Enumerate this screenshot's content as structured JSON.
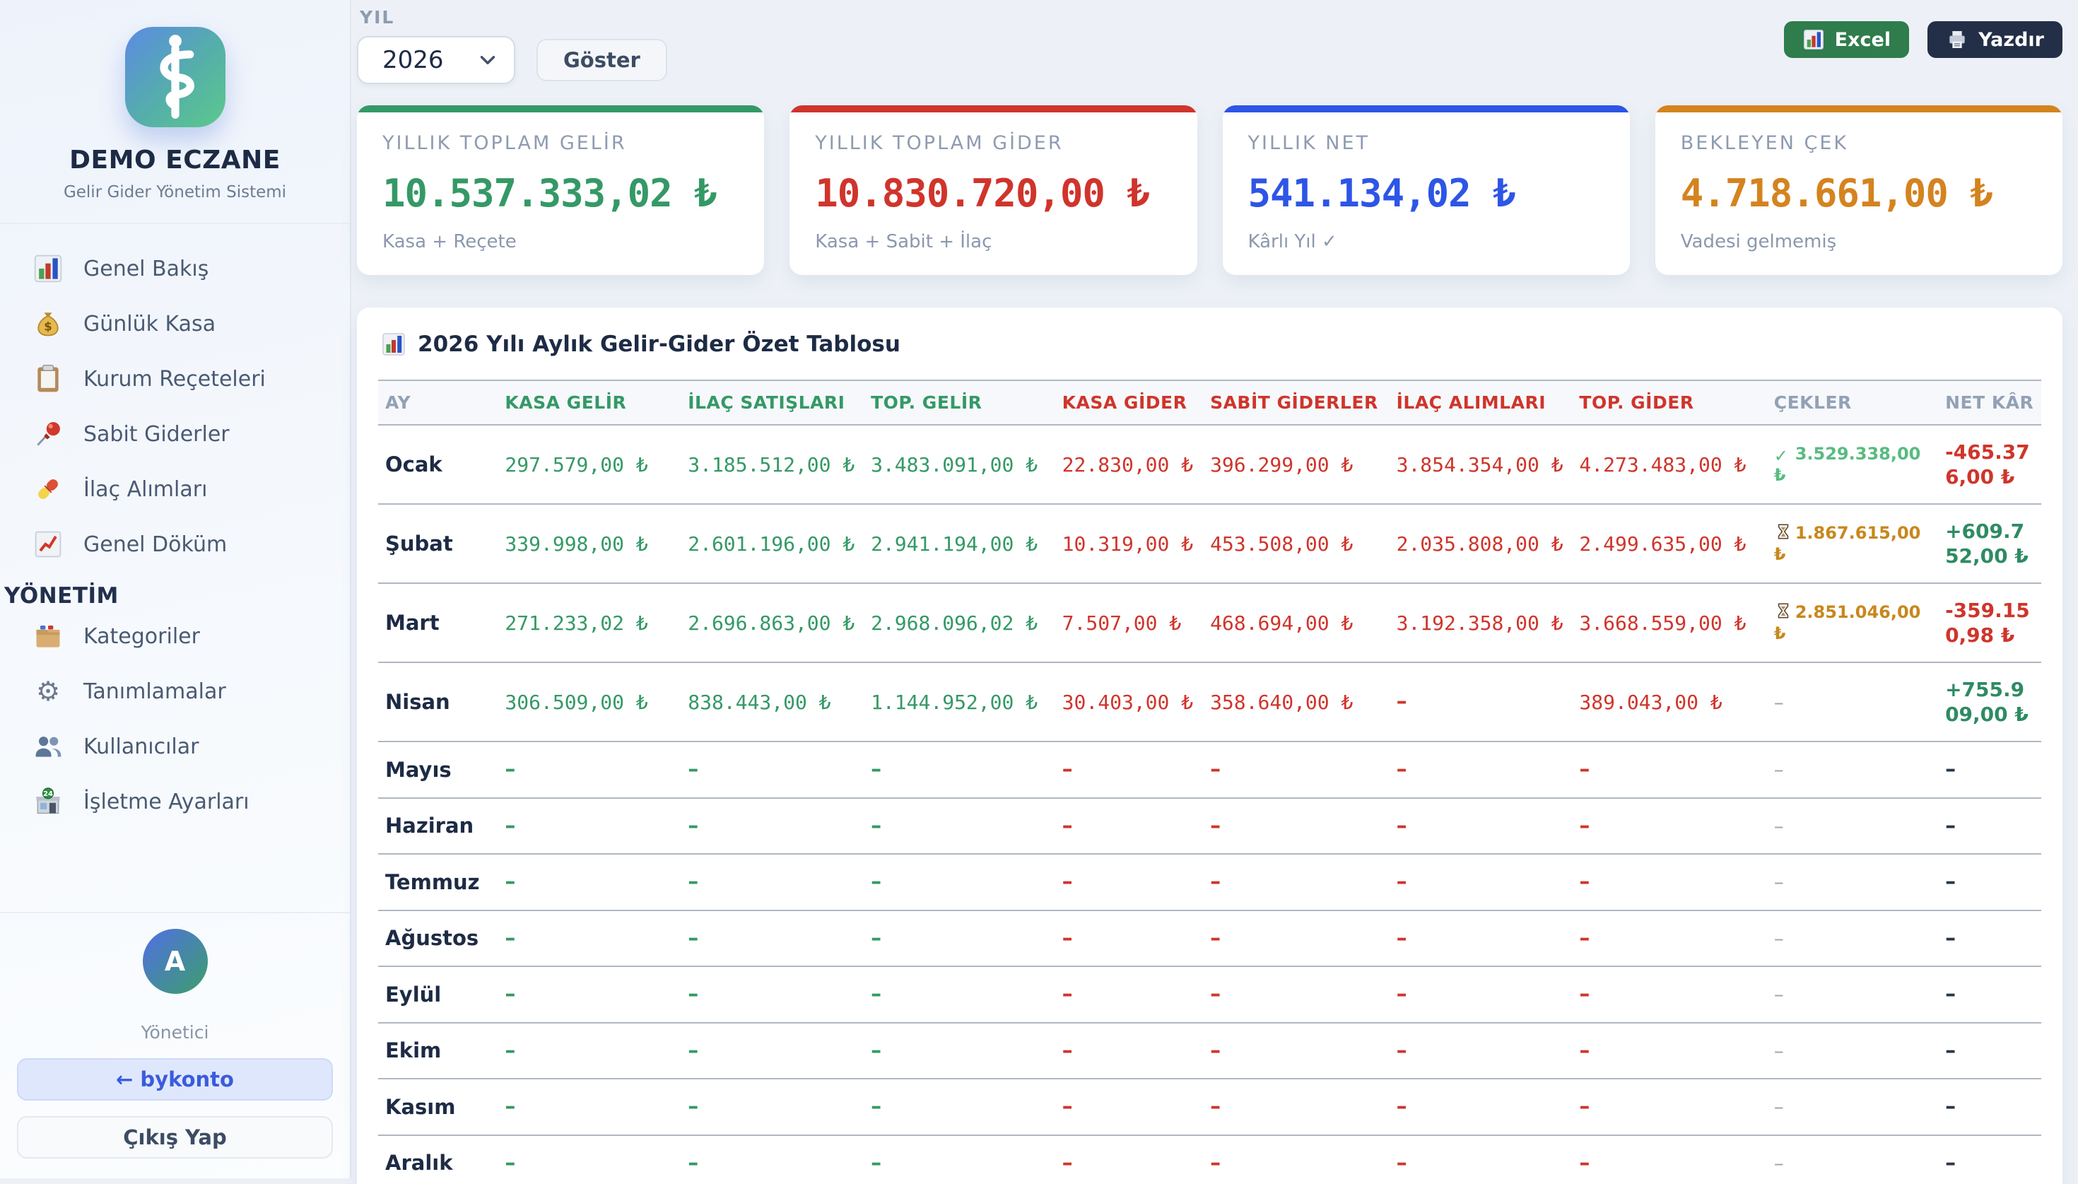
{
  "app": {
    "title": "DEMO ECZANE",
    "subtitle": "Gelir Gider Yönetim Sistemi"
  },
  "sidebar": {
    "menu": [
      {
        "icon": "bar-chart-icon",
        "label": "Genel Bakış"
      },
      {
        "icon": "money-bag-icon",
        "label": "Günlük Kasa"
      },
      {
        "icon": "clipboard-icon",
        "label": "Kurum Reçeteleri"
      },
      {
        "icon": "pushpin-icon",
        "label": "Sabit Giderler"
      },
      {
        "icon": "pill-icon",
        "label": "İlaç Alımları"
      },
      {
        "icon": "chart-up-icon",
        "label": "Genel Döküm"
      }
    ],
    "section_label": "YÖNETİM",
    "admin_menu": [
      {
        "icon": "folder-icon",
        "label": "Kategoriler"
      },
      {
        "icon": "gear-icon",
        "label": "Tanımlamalar"
      },
      {
        "icon": "users-icon",
        "label": "Kullanıcılar"
      },
      {
        "icon": "store-icon",
        "label": "İşletme Ayarları"
      }
    ],
    "user": {
      "avatar_letter": "A",
      "role": "Yönetici",
      "back_button": "← bykonto",
      "logout_button": "Çıkış Yap"
    }
  },
  "toolbar": {
    "year_label": "YIL",
    "year_value": "2026",
    "show_button": "Göster",
    "excel_button": "Excel",
    "print_button": "Yazdır"
  },
  "summary_cards": [
    {
      "label": "YILLIK TOPLAM GELİR",
      "value": "10.537.333,02 ₺",
      "subtitle": "Kasa + Reçete",
      "accent": "#349966"
    },
    {
      "label": "YILLIK TOPLAM GİDER",
      "value": "10.830.720,00 ₺",
      "subtitle": "Kasa + Sabit + İlaç",
      "accent": "#d0342c"
    },
    {
      "label": "YILLIK NET",
      "value": "541.134,02 ₺",
      "subtitle": "Kârlı Yıl ✓",
      "accent": "#2d55e6"
    },
    {
      "label": "BEKLEYEN ÇEK",
      "value": "4.718.661,00 ₺",
      "subtitle": "Vadesi gelmemiş",
      "accent": "#d4831f"
    }
  ],
  "table": {
    "title": "2026 Yılı Aylık Gelir-Gider Özet Tablosu",
    "columns": [
      {
        "label": "AY",
        "tone": "muted"
      },
      {
        "label": "KASA GELİR",
        "tone": "income"
      },
      {
        "label": "İLAÇ SATIŞLARI",
        "tone": "income"
      },
      {
        "label": "TOP. GELİR",
        "tone": "income"
      },
      {
        "label": "KASA GİDER",
        "tone": "expense"
      },
      {
        "label": "SABİT GİDERLER",
        "tone": "expense"
      },
      {
        "label": "İLAÇ ALIMLARI",
        "tone": "expense"
      },
      {
        "label": "TOP. GİDER",
        "tone": "expense"
      },
      {
        "label": "ÇEKLER",
        "tone": "muted"
      },
      {
        "label": "NET KÂR",
        "tone": "muted"
      }
    ],
    "rows": [
      {
        "month": "Ocak",
        "values": [
          "297.579,00 ₺",
          "3.185.512,00 ₺",
          "3.483.091,00 ₺",
          "22.830,00 ₺",
          "396.299,00 ₺",
          "3.854.354,00 ₺",
          "4.273.483,00 ₺"
        ],
        "cek": {
          "icon": "check-icon",
          "text": "3.529.338,00 ₺",
          "tone": "paid"
        },
        "net": {
          "text": "-465.376,00 ₺",
          "tone": "neg"
        }
      },
      {
        "month": "Şubat",
        "values": [
          "339.998,00 ₺",
          "2.601.196,00 ₺",
          "2.941.194,00 ₺",
          "10.319,00 ₺",
          "453.508,00 ₺",
          "2.035.808,00 ₺",
          "2.499.635,00 ₺"
        ],
        "cek": {
          "icon": "hourglass-icon",
          "text": "1.867.615,00 ₺",
          "tone": "pending"
        },
        "net": {
          "text": "+609.752,00 ₺",
          "tone": "pos"
        }
      },
      {
        "month": "Mart",
        "values": [
          "271.233,02 ₺",
          "2.696.863,00 ₺",
          "2.968.096,02 ₺",
          "7.507,00 ₺",
          "468.694,00 ₺",
          "3.192.358,00 ₺",
          "3.668.559,00 ₺"
        ],
        "cek": {
          "icon": "hourglass-icon",
          "text": "2.851.046,00 ₺",
          "tone": "pending"
        },
        "net": {
          "text": "-359.150,98 ₺",
          "tone": "neg"
        }
      },
      {
        "month": "Nisan",
        "values": [
          "306.509,00 ₺",
          "838.443,00 ₺",
          "1.144.952,00 ₺",
          "30.403,00 ₺",
          "358.640,00 ₺",
          "–",
          "389.043,00 ₺"
        ],
        "cek": {
          "icon": "",
          "text": "–",
          "tone": "muted"
        },
        "net": {
          "text": "+755.909,00 ₺",
          "tone": "pos"
        }
      },
      {
        "month": "Mayıs",
        "values": [
          "–",
          "–",
          "–",
          "–",
          "–",
          "–",
          "–"
        ],
        "cek": {
          "icon": "",
          "text": "–",
          "tone": "muted"
        },
        "net": {
          "text": "–",
          "tone": "dark"
        }
      },
      {
        "month": "Haziran",
        "values": [
          "–",
          "–",
          "–",
          "–",
          "–",
          "–",
          "–"
        ],
        "cek": {
          "icon": "",
          "text": "–",
          "tone": "muted"
        },
        "net": {
          "text": "–",
          "tone": "dark"
        }
      },
      {
        "month": "Temmuz",
        "values": [
          "–",
          "–",
          "–",
          "–",
          "–",
          "–",
          "–"
        ],
        "cek": {
          "icon": "",
          "text": "–",
          "tone": "muted"
        },
        "net": {
          "text": "–",
          "tone": "dark"
        }
      },
      {
        "month": "Ağustos",
        "values": [
          "–",
          "–",
          "–",
          "–",
          "–",
          "–",
          "–"
        ],
        "cek": {
          "icon": "",
          "text": "–",
          "tone": "muted"
        },
        "net": {
          "text": "–",
          "tone": "dark"
        }
      },
      {
        "month": "Eylül",
        "values": [
          "–",
          "–",
          "–",
          "–",
          "–",
          "–",
          "–"
        ],
        "cek": {
          "icon": "",
          "text": "–",
          "tone": "muted"
        },
        "net": {
          "text": "–",
          "tone": "dark"
        }
      },
      {
        "month": "Ekim",
        "values": [
          "–",
          "–",
          "–",
          "–",
          "–",
          "–",
          "–"
        ],
        "cek": {
          "icon": "",
          "text": "–",
          "tone": "muted"
        },
        "net": {
          "text": "–",
          "tone": "dark"
        }
      },
      {
        "month": "Kasım",
        "values": [
          "–",
          "–",
          "–",
          "–",
          "–",
          "–",
          "–"
        ],
        "cek": {
          "icon": "",
          "text": "–",
          "tone": "muted"
        },
        "net": {
          "text": "–",
          "tone": "dark"
        }
      },
      {
        "month": "Aralık",
        "values": [
          "–",
          "–",
          "–",
          "–",
          "–",
          "–",
          "–"
        ],
        "cek": {
          "icon": "",
          "text": "–",
          "tone": "muted"
        },
        "net": {
          "text": "–",
          "tone": "dark"
        }
      }
    ]
  },
  "colors": {
    "income": "#349966",
    "expense": "#cf352b",
    "net_blue": "#2d55e6",
    "pending_orange": "#c8871c",
    "paid_green": "#58bb80",
    "muted": "#9aa5b4",
    "dark_navy": "#1d2b45",
    "excel_green": "#2f7c4c",
    "print_navy": "#232f47",
    "accent_blue": "#3b5bdb"
  }
}
